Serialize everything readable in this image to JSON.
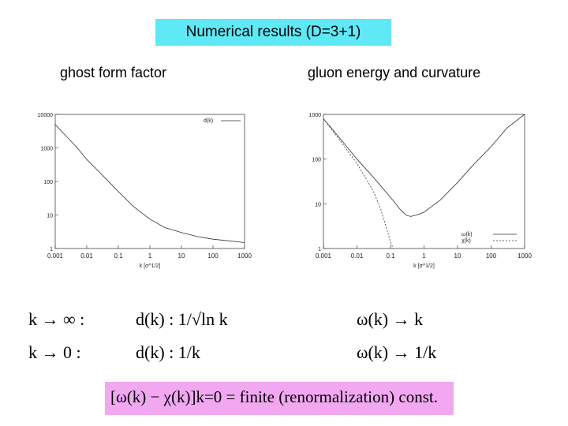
{
  "title": "Numerical results (D=3+1)",
  "left_panel": {
    "heading": "ghost form factor"
  },
  "right_panel": {
    "heading": "gluon energy and curvature"
  },
  "formulas": {
    "row1_left": "k → ∞ :",
    "row1_mid": "d(k) : 1/√ln k",
    "row1_right": "ω(k) → k",
    "row2_left": "k → 0 :",
    "row2_mid": "d(k) : 1/k",
    "row2_right": "ω(k) → 1/k",
    "boxed": "[ω(k) − χ(k)]k=0 = finite (renormalization) const."
  },
  "colors": {
    "title_bg": "#5fe8f5",
    "box_bg": "#f1a8f1"
  },
  "chart_data": [
    {
      "type": "line",
      "title": "",
      "xlabel": "k [σ^1/2]",
      "ylabel": "",
      "xscale": "log",
      "yscale": "log",
      "xlim": [
        0.001,
        1000
      ],
      "ylim": [
        1,
        10000
      ],
      "xticks": [
        "0.001",
        "0.01",
        "0.1",
        "1",
        "10",
        "100",
        "1000"
      ],
      "yticks": [
        "1",
        "10",
        "100",
        "1000",
        "10000"
      ],
      "legend": "top-right",
      "series": [
        {
          "name": "d(k)",
          "x": [
            0.001,
            0.002,
            0.005,
            0.01,
            0.03,
            0.1,
            0.3,
            1,
            3,
            10,
            30,
            100,
            300,
            1000
          ],
          "y": [
            5000,
            2500,
            1000,
            450,
            160,
            50,
            18,
            7.5,
            4.2,
            3.0,
            2.3,
            1.9,
            1.7,
            1.5
          ]
        }
      ]
    },
    {
      "type": "line",
      "title": "",
      "xlabel": "k [σ^1/2]",
      "ylabel": "",
      "xscale": "log",
      "yscale": "log",
      "xlim": [
        0.001,
        1000
      ],
      "ylim": [
        1,
        1000
      ],
      "xticks": [
        "0.001",
        "0.01",
        "0.1",
        "1",
        "10",
        "100",
        "1000"
      ],
      "yticks": [
        "1",
        "10",
        "100",
        "1000"
      ],
      "legend": "bottom-right",
      "series": [
        {
          "name": "ω(k)",
          "x": [
            0.001,
            0.003,
            0.01,
            0.03,
            0.1,
            0.2,
            0.3,
            0.4,
            0.6,
            1,
            3,
            10,
            30,
            100,
            300,
            1000
          ],
          "y": [
            800,
            300,
            100,
            40,
            14,
            7.3,
            5.5,
            5.2,
            5.6,
            6.5,
            12,
            30,
            75,
            190,
            500,
            1000
          ]
        },
        {
          "name": "χ(k)",
          "x": [
            0.001,
            0.003,
            0.01,
            0.03,
            0.05,
            0.08,
            0.1,
            0.12
          ],
          "y": [
            800,
            270,
            80,
            20,
            8,
            2.5,
            1.4,
            1
          ]
        }
      ]
    }
  ]
}
